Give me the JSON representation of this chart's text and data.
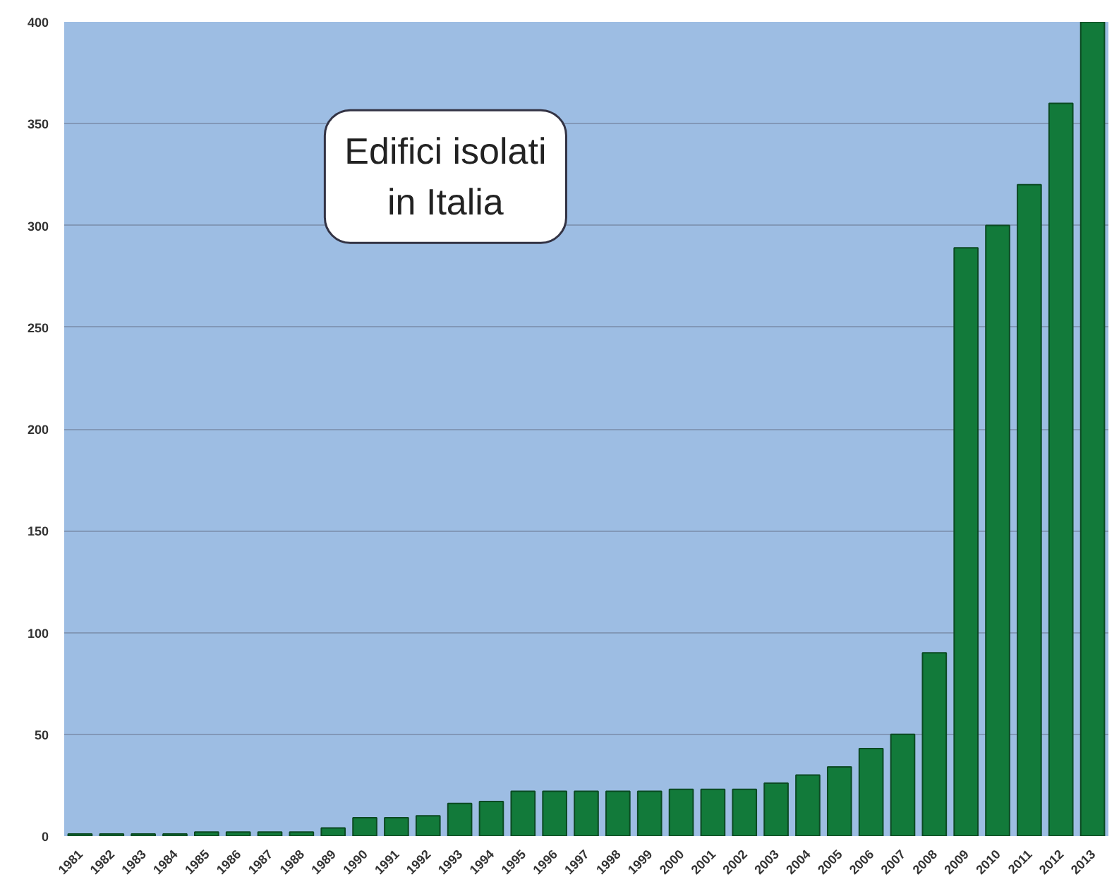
{
  "chart_data": {
    "type": "bar",
    "categories": [
      "1981",
      "1982",
      "1983",
      "1984",
      "1985",
      "1986",
      "1987",
      "1988",
      "1989",
      "1990",
      "1991",
      "1992",
      "1993",
      "1994",
      "1995",
      "1996",
      "1997",
      "1998",
      "1999",
      "2000",
      "2001",
      "2002",
      "2003",
      "2004",
      "2005",
      "2006",
      "2007",
      "2008",
      "2009",
      "2010",
      "2011",
      "2012",
      "2013"
    ],
    "values": [
      1,
      1,
      1,
      1,
      2,
      2,
      2,
      2,
      4,
      9,
      9,
      10,
      16,
      17,
      22,
      22,
      22,
      22,
      22,
      23,
      23,
      23,
      26,
      30,
      34,
      43,
      50,
      90,
      289,
      300,
      320,
      360,
      400
    ],
    "color": "#127a3a",
    "ylim": [
      0,
      400
    ],
    "yticks": [
      0,
      50,
      100,
      150,
      200,
      250,
      300,
      350,
      400
    ],
    "grid": "y",
    "annotations": [
      "Edifici isolati\nin Italia"
    ]
  }
}
